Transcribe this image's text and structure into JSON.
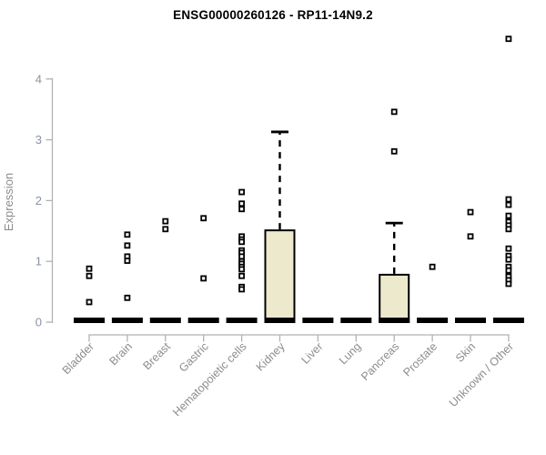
{
  "title": "ENSG00000260126 - RP11-14N9.2",
  "chart_data": {
    "type": "boxplot",
    "title": "ENSG00000260126 - RP11-14N9.2",
    "xlabel": "",
    "ylabel": "Expression",
    "ylim": [
      0,
      4
    ],
    "yticks": [
      "0",
      "1",
      "2",
      "3",
      "4"
    ],
    "grid": false,
    "legend": "none",
    "categories": [
      "Bladder",
      "Brain",
      "Breast",
      "Gastric",
      "Hematopoietic cells",
      "Kidney",
      "Liver",
      "Lung",
      "Pancreas",
      "Prostate",
      "Skin",
      "Unknown / Other"
    ],
    "boxes": [
      {
        "category": "Bladder",
        "min": 0,
        "q1": 0,
        "median": 0,
        "q3": 0,
        "max": 0,
        "outliers": [
          0.88,
          0.76,
          0.33
        ]
      },
      {
        "category": "Brain",
        "min": 0,
        "q1": 0,
        "median": 0,
        "q3": 0,
        "max": 0,
        "outliers": [
          1.44,
          1.26,
          1.08,
          1.01,
          0.4
        ]
      },
      {
        "category": "Breast",
        "min": 0,
        "q1": 0,
        "median": 0,
        "q3": 0,
        "max": 0,
        "outliers": [
          1.66,
          1.53
        ]
      },
      {
        "category": "Gastric",
        "min": 0,
        "q1": 0,
        "median": 0,
        "q3": 0,
        "max": 0,
        "outliers": [
          1.71,
          0.72
        ]
      },
      {
        "category": "Hematopoietic cells",
        "min": 0,
        "q1": 0,
        "median": 0,
        "q3": 0,
        "max": 0,
        "outliers": [
          2.14,
          1.95,
          1.86,
          1.41,
          1.36,
          1.32,
          1.18,
          1.14,
          1.08,
          1.0,
          0.96,
          0.91,
          0.87,
          0.76,
          0.58,
          0.54
        ]
      },
      {
        "category": "Kidney",
        "min": 0,
        "q1": 0,
        "median": 0,
        "q3": 1.51,
        "max": 3.13,
        "outliers": []
      },
      {
        "category": "Liver",
        "min": 0,
        "q1": 0,
        "median": 0,
        "q3": 0,
        "max": 0,
        "outliers": []
      },
      {
        "category": "Lung",
        "min": 0,
        "q1": 0,
        "median": 0,
        "q3": 0,
        "max": 0,
        "outliers": []
      },
      {
        "category": "Pancreas",
        "min": 0,
        "q1": 0,
        "median": 0,
        "q3": 0.78,
        "max": 1.63,
        "outliers": [
          3.46,
          2.81
        ]
      },
      {
        "category": "Prostate",
        "min": 0,
        "q1": 0,
        "median": 0,
        "q3": 0,
        "max": 0,
        "outliers": [
          0.91
        ]
      },
      {
        "category": "Skin",
        "min": 0,
        "q1": 0,
        "median": 0,
        "q3": 0,
        "max": 0,
        "outliers": [
          1.81,
          1.41
        ]
      },
      {
        "category": "Unknown / Other",
        "min": 0,
        "q1": 0,
        "median": 0,
        "q3": 0,
        "max": 0,
        "outliers": [
          4.66,
          2.02,
          1.93,
          1.75,
          1.65,
          1.59,
          1.53,
          1.21,
          1.09,
          1.03,
          0.91,
          0.85,
          0.75,
          0.69,
          0.63
        ]
      }
    ],
    "colors": {
      "box_fill": "#ece9cc",
      "box_border": "#000000",
      "median": "#000000",
      "whisker": "#000000",
      "outlier_fill": "#ffffff",
      "outlier_border": "#000000",
      "axis_line": "#b2b2b2",
      "y_tick_label": "#8a92a2",
      "x_tick_label": "#8c8c8c",
      "title_color": "#000000"
    }
  }
}
